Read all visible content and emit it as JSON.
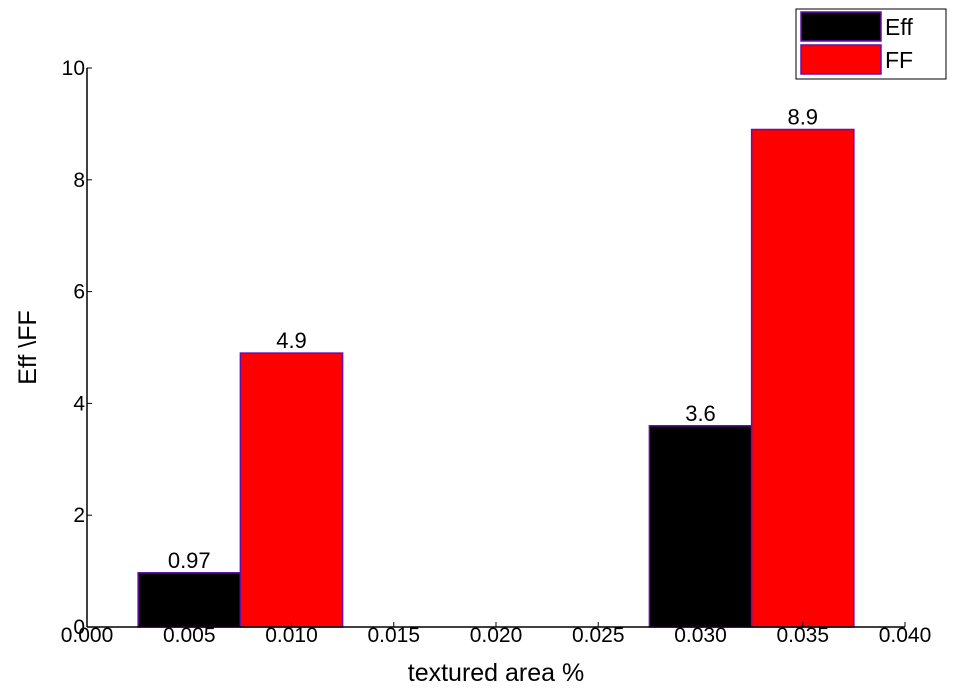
{
  "chart_data": {
    "type": "bar",
    "title": "",
    "xlabel": "textured area %",
    "ylabel": "Eff \\FF",
    "xlim": [
      0.0,
      0.04
    ],
    "ylim": [
      0,
      10
    ],
    "x_ticks": [
      "0.000",
      "0.005",
      "0.010",
      "0.015",
      "0.020",
      "0.025",
      "0.030",
      "0.035",
      "0.040"
    ],
    "y_ticks": [
      "0",
      "2",
      "4",
      "6",
      "8",
      "10"
    ],
    "bar_width": 0.005,
    "grid": false,
    "legend_position": "top-right",
    "series": [
      {
        "name": "Eff",
        "color": "#000000",
        "edge_color": "#6a0dad",
        "bars": [
          {
            "x_start": 0.0025,
            "value": 0.97,
            "label": "0.97"
          },
          {
            "x_start": 0.0275,
            "value": 3.6,
            "label": "3.6"
          }
        ]
      },
      {
        "name": "FF",
        "color": "#ff0000",
        "edge_color": "#6a0dad",
        "bars": [
          {
            "x_start": 0.0075,
            "value": 4.9,
            "label": "4.9"
          },
          {
            "x_start": 0.0325,
            "value": 8.9,
            "label": "8.9"
          }
        ]
      }
    ]
  }
}
